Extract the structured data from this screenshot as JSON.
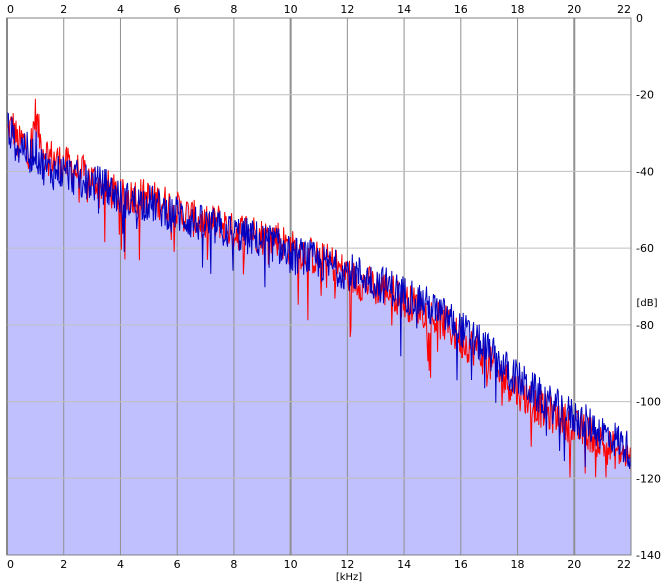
{
  "chart_data": {
    "type": "area",
    "xlabel": "[kHz]",
    "ylabel": "[dB]",
    "xlim": [
      0,
      22
    ],
    "ylim": [
      -140,
      0
    ],
    "x_ticks": [
      0,
      2,
      4,
      6,
      8,
      10,
      12,
      14,
      16,
      18,
      20,
      22
    ],
    "x_tick_labels": [
      "0",
      "2",
      "4",
      "6",
      "8",
      "10",
      "12",
      "14",
      "16",
      "18",
      "20",
      "22"
    ],
    "y_ticks": [
      0,
      -20,
      -40,
      -60,
      -80,
      -100,
      -120,
      -140
    ],
    "y_tick_labels": [
      "0",
      "-20",
      "-40",
      "-60",
      "-80",
      "-100",
      "-120",
      "-140"
    ],
    "x_labels_top_and_bottom": true,
    "grid": true,
    "background_color": "#ffffff",
    "fill_color": "#c0c0ff",
    "grid_color": "#909090",
    "series": [
      {
        "color": "#ff0000",
        "x": [
          0,
          0.2,
          0.4,
          0.6,
          0.8,
          1.0,
          1.2,
          1.5,
          2.0,
          2.5,
          3.0,
          3.5,
          4.0,
          4.5,
          5.0,
          5.5,
          6.0,
          6.5,
          7.0,
          7.5,
          8.0,
          8.5,
          9.0,
          9.5,
          10.0,
          10.5,
          11.0,
          11.5,
          12.0,
          12.5,
          13.0,
          13.5,
          14.0,
          14.5,
          15.0,
          15.5,
          16.0,
          16.5,
          17.0,
          17.5,
          18.0,
          18.5,
          19.0,
          19.5,
          20.0,
          20.5,
          21.0,
          21.5,
          22.0
        ],
        "y": [
          -30,
          -28,
          -33,
          -32,
          -35,
          -25,
          -33,
          -36,
          -38,
          -40,
          -42,
          -44,
          -47,
          -46,
          -47,
          -48,
          -50,
          -52,
          -54,
          -53,
          -56,
          -55,
          -57,
          -57,
          -60,
          -61,
          -63,
          -64,
          -67,
          -69,
          -70,
          -71,
          -74,
          -75,
          -78,
          -80,
          -84,
          -86,
          -90,
          -94,
          -97,
          -100,
          -103,
          -104,
          -107,
          -108,
          -111,
          -113,
          -115
        ]
      },
      {
        "color": "#0000c0",
        "x": [
          0,
          0.2,
          0.4,
          0.6,
          0.8,
          1.0,
          1.2,
          1.5,
          2.0,
          2.5,
          3.0,
          3.5,
          4.0,
          4.5,
          5.0,
          5.5,
          6.0,
          6.5,
          7.0,
          7.5,
          8.0,
          8.5,
          9.0,
          9.5,
          10.0,
          10.5,
          11.0,
          11.5,
          12.0,
          12.5,
          13.0,
          13.5,
          14.0,
          14.5,
          15.0,
          15.5,
          16.0,
          16.5,
          17.0,
          17.5,
          18.0,
          18.5,
          19.0,
          19.5,
          20.0,
          20.5,
          21.0,
          21.5,
          22.0
        ],
        "y": [
          -28,
          -31,
          -34,
          -33,
          -36,
          -34,
          -38,
          -40,
          -40,
          -42,
          -43,
          -44,
          -47,
          -48,
          -48,
          -50,
          -51,
          -53,
          -54,
          -55,
          -56,
          -57,
          -58,
          -59,
          -62,
          -62,
          -64,
          -65,
          -66,
          -67,
          -69,
          -70,
          -72,
          -73,
          -76,
          -78,
          -81,
          -84,
          -87,
          -91,
          -94,
          -97,
          -100,
          -102,
          -104,
          -106,
          -108,
          -110,
          -113
        ]
      }
    ]
  }
}
